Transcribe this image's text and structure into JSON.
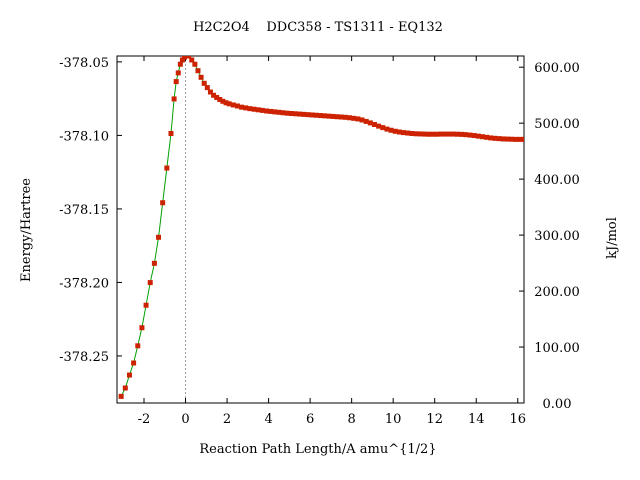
{
  "chart_data": {
    "type": "scatter",
    "title": "H2C2O4    DDC358 - TS1311 - EQ132",
    "xlabel": "Reaction Path Length/A amu^{1/2}",
    "ylabel": "Energy/Hartree",
    "y2label": "kJ/mol",
    "xlim": [
      -3.3,
      16.3
    ],
    "ylim": [
      -378.282,
      -378.046
    ],
    "y2lim": [
      0,
      620
    ],
    "x_ticks": [
      -2,
      0,
      2,
      4,
      6,
      8,
      10,
      12,
      14,
      16
    ],
    "x_tick_labels": [
      "-2",
      "0",
      "2",
      "4",
      "6",
      "8",
      "10",
      "12",
      "14",
      "16"
    ],
    "y_ticks": [
      -378.05,
      -378.1,
      -378.15,
      -378.2,
      -378.25
    ],
    "y_tick_labels": [
      "-378.05",
      "-378.10",
      "-378.15",
      "-378.20",
      "-378.25"
    ],
    "y2_ticks": [
      0,
      100,
      200,
      300,
      400,
      500,
      600
    ],
    "y2_tick_labels": [
      "0.00",
      "100.00",
      "200.00",
      "300.00",
      "400.00",
      "500.00",
      "600.00"
    ],
    "ts_marker_x": 0,
    "grid": false,
    "legend": "none",
    "series": [
      {
        "line_color": "#00a000",
        "marker_color": "#cc2200",
        "x": [
          -3.1,
          -2.9,
          -2.7,
          -2.5,
          -2.3,
          -2.1,
          -1.9,
          -1.7,
          -1.5,
          -1.3,
          -1.1,
          -0.9,
          -0.7,
          -0.55,
          -0.45,
          -0.35,
          -0.25,
          -0.15,
          -0.05,
          0.0,
          0.15,
          0.3,
          0.45,
          0.6,
          0.75,
          0.9,
          1.05,
          1.2,
          1.35,
          1.5,
          1.65,
          1.8,
          1.95,
          2.1,
          2.3,
          2.5,
          2.7,
          2.9,
          3.1,
          3.3,
          3.5,
          3.7,
          3.9,
          4.1,
          4.3,
          4.5,
          4.7,
          4.9,
          5.1,
          5.3,
          5.5,
          5.7,
          5.9,
          6.1,
          6.3,
          6.5,
          6.7,
          6.9,
          7.1,
          7.3,
          7.5,
          7.7,
          7.9,
          8.1,
          8.3,
          8.5,
          8.7,
          8.9,
          9.1,
          9.3,
          9.5,
          9.7,
          9.9,
          10.1,
          10.3,
          10.5,
          10.7,
          10.9,
          11.1,
          11.3,
          11.5,
          11.7,
          11.9,
          12.1,
          12.3,
          12.5,
          12.7,
          12.9,
          13.1,
          13.3,
          13.5,
          13.7,
          13.9,
          14.1,
          14.3,
          14.5,
          14.7,
          14.9,
          15.1,
          15.3,
          15.5,
          15.7,
          15.9,
          16.1,
          16.3
        ],
        "y": [
          -378.2775,
          -378.2718,
          -378.263,
          -378.2548,
          -378.2431,
          -378.2308,
          -378.2155,
          -378.2001,
          -378.187,
          -378.1693,
          -378.1458,
          -378.1222,
          -378.0987,
          -378.0752,
          -378.0634,
          -378.0575,
          -378.0516,
          -378.0487,
          -378.0468,
          -378.0458,
          -378.046,
          -378.0487,
          -378.0516,
          -378.056,
          -378.0605,
          -378.0646,
          -378.0675,
          -378.0705,
          -378.0727,
          -378.0742,
          -378.0756,
          -378.0768,
          -378.0778,
          -378.0785,
          -378.0793,
          -378.08,
          -378.0808,
          -378.0813,
          -378.0818,
          -378.0822,
          -378.0826,
          -378.083,
          -378.0834,
          -378.0837,
          -378.084,
          -378.0843,
          -378.0846,
          -378.0849,
          -378.0851,
          -378.0853,
          -378.0855,
          -378.0857,
          -378.0859,
          -378.0861,
          -378.0863,
          -378.0865,
          -378.0867,
          -378.0869,
          -378.0871,
          -378.0873,
          -378.0875,
          -378.0877,
          -378.088,
          -378.0884,
          -378.0888,
          -378.0895,
          -378.0905,
          -378.0915,
          -378.0926,
          -378.0937,
          -378.0947,
          -378.0957,
          -378.0965,
          -378.0972,
          -378.0977,
          -378.0981,
          -378.0984,
          -378.0987,
          -378.0989,
          -378.099,
          -378.0991,
          -378.0992,
          -378.0992,
          -378.0992,
          -378.0991,
          -378.0991,
          -378.0991,
          -378.0991,
          -378.0992,
          -378.0993,
          -378.0995,
          -378.0998,
          -378.1001,
          -378.1005,
          -378.1009,
          -378.1013,
          -378.1017,
          -378.102,
          -378.1022,
          -378.1024,
          -378.1025,
          -378.1026,
          -378.1027,
          -378.1027,
          -378.1027
        ]
      }
    ]
  }
}
